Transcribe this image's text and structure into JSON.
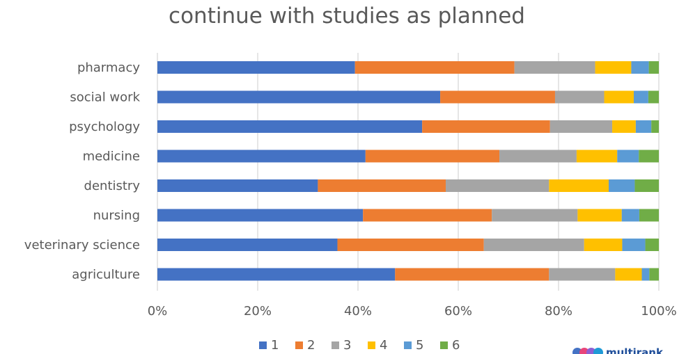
{
  "chart_data": {
    "type": "bar",
    "orientation": "horizontal",
    "stacked": "percent",
    "title": "continue with studies as planned",
    "categories": [
      "pharmacy",
      "social work",
      "psychology",
      "medicine",
      "dentistry",
      "nursing",
      "veterinary science",
      "agriculture"
    ],
    "series": [
      {
        "name": "1",
        "color": "#4472c4",
        "values": [
          39.4,
          56.4,
          52.8,
          41.5,
          32.0,
          41.0,
          35.9,
          47.4
        ]
      },
      {
        "name": "2",
        "color": "#ed7d31",
        "values": [
          31.8,
          22.9,
          25.5,
          26.7,
          25.5,
          25.7,
          29.2,
          30.7
        ]
      },
      {
        "name": "3",
        "color": "#a5a5a5",
        "values": [
          16.1,
          9.8,
          12.4,
          15.4,
          20.6,
          17.1,
          20.0,
          13.2
        ]
      },
      {
        "name": "4",
        "color": "#ffc000",
        "values": [
          7.2,
          5.9,
          4.7,
          8.1,
          11.9,
          8.8,
          7.6,
          5.3
        ]
      },
      {
        "name": "5",
        "color": "#5b9bd5",
        "values": [
          3.5,
          2.9,
          3.1,
          4.3,
          5.2,
          3.5,
          4.6,
          1.5
        ]
      },
      {
        "name": "6",
        "color": "#70ad47",
        "values": [
          2.0,
          2.1,
          1.5,
          4.0,
          4.8,
          3.9,
          2.7,
          1.9
        ]
      }
    ],
    "xlim": [
      0,
      100
    ],
    "x_ticks": [
      "0%",
      "20%",
      "40%",
      "60%",
      "80%",
      "100%"
    ],
    "grid": "vertical",
    "legend": "bottom"
  },
  "watermark": {
    "text": "multirank",
    "dot_colors": [
      "#4472c4",
      "#e8457a",
      "#8e5fd3",
      "#1f9ad6"
    ]
  }
}
